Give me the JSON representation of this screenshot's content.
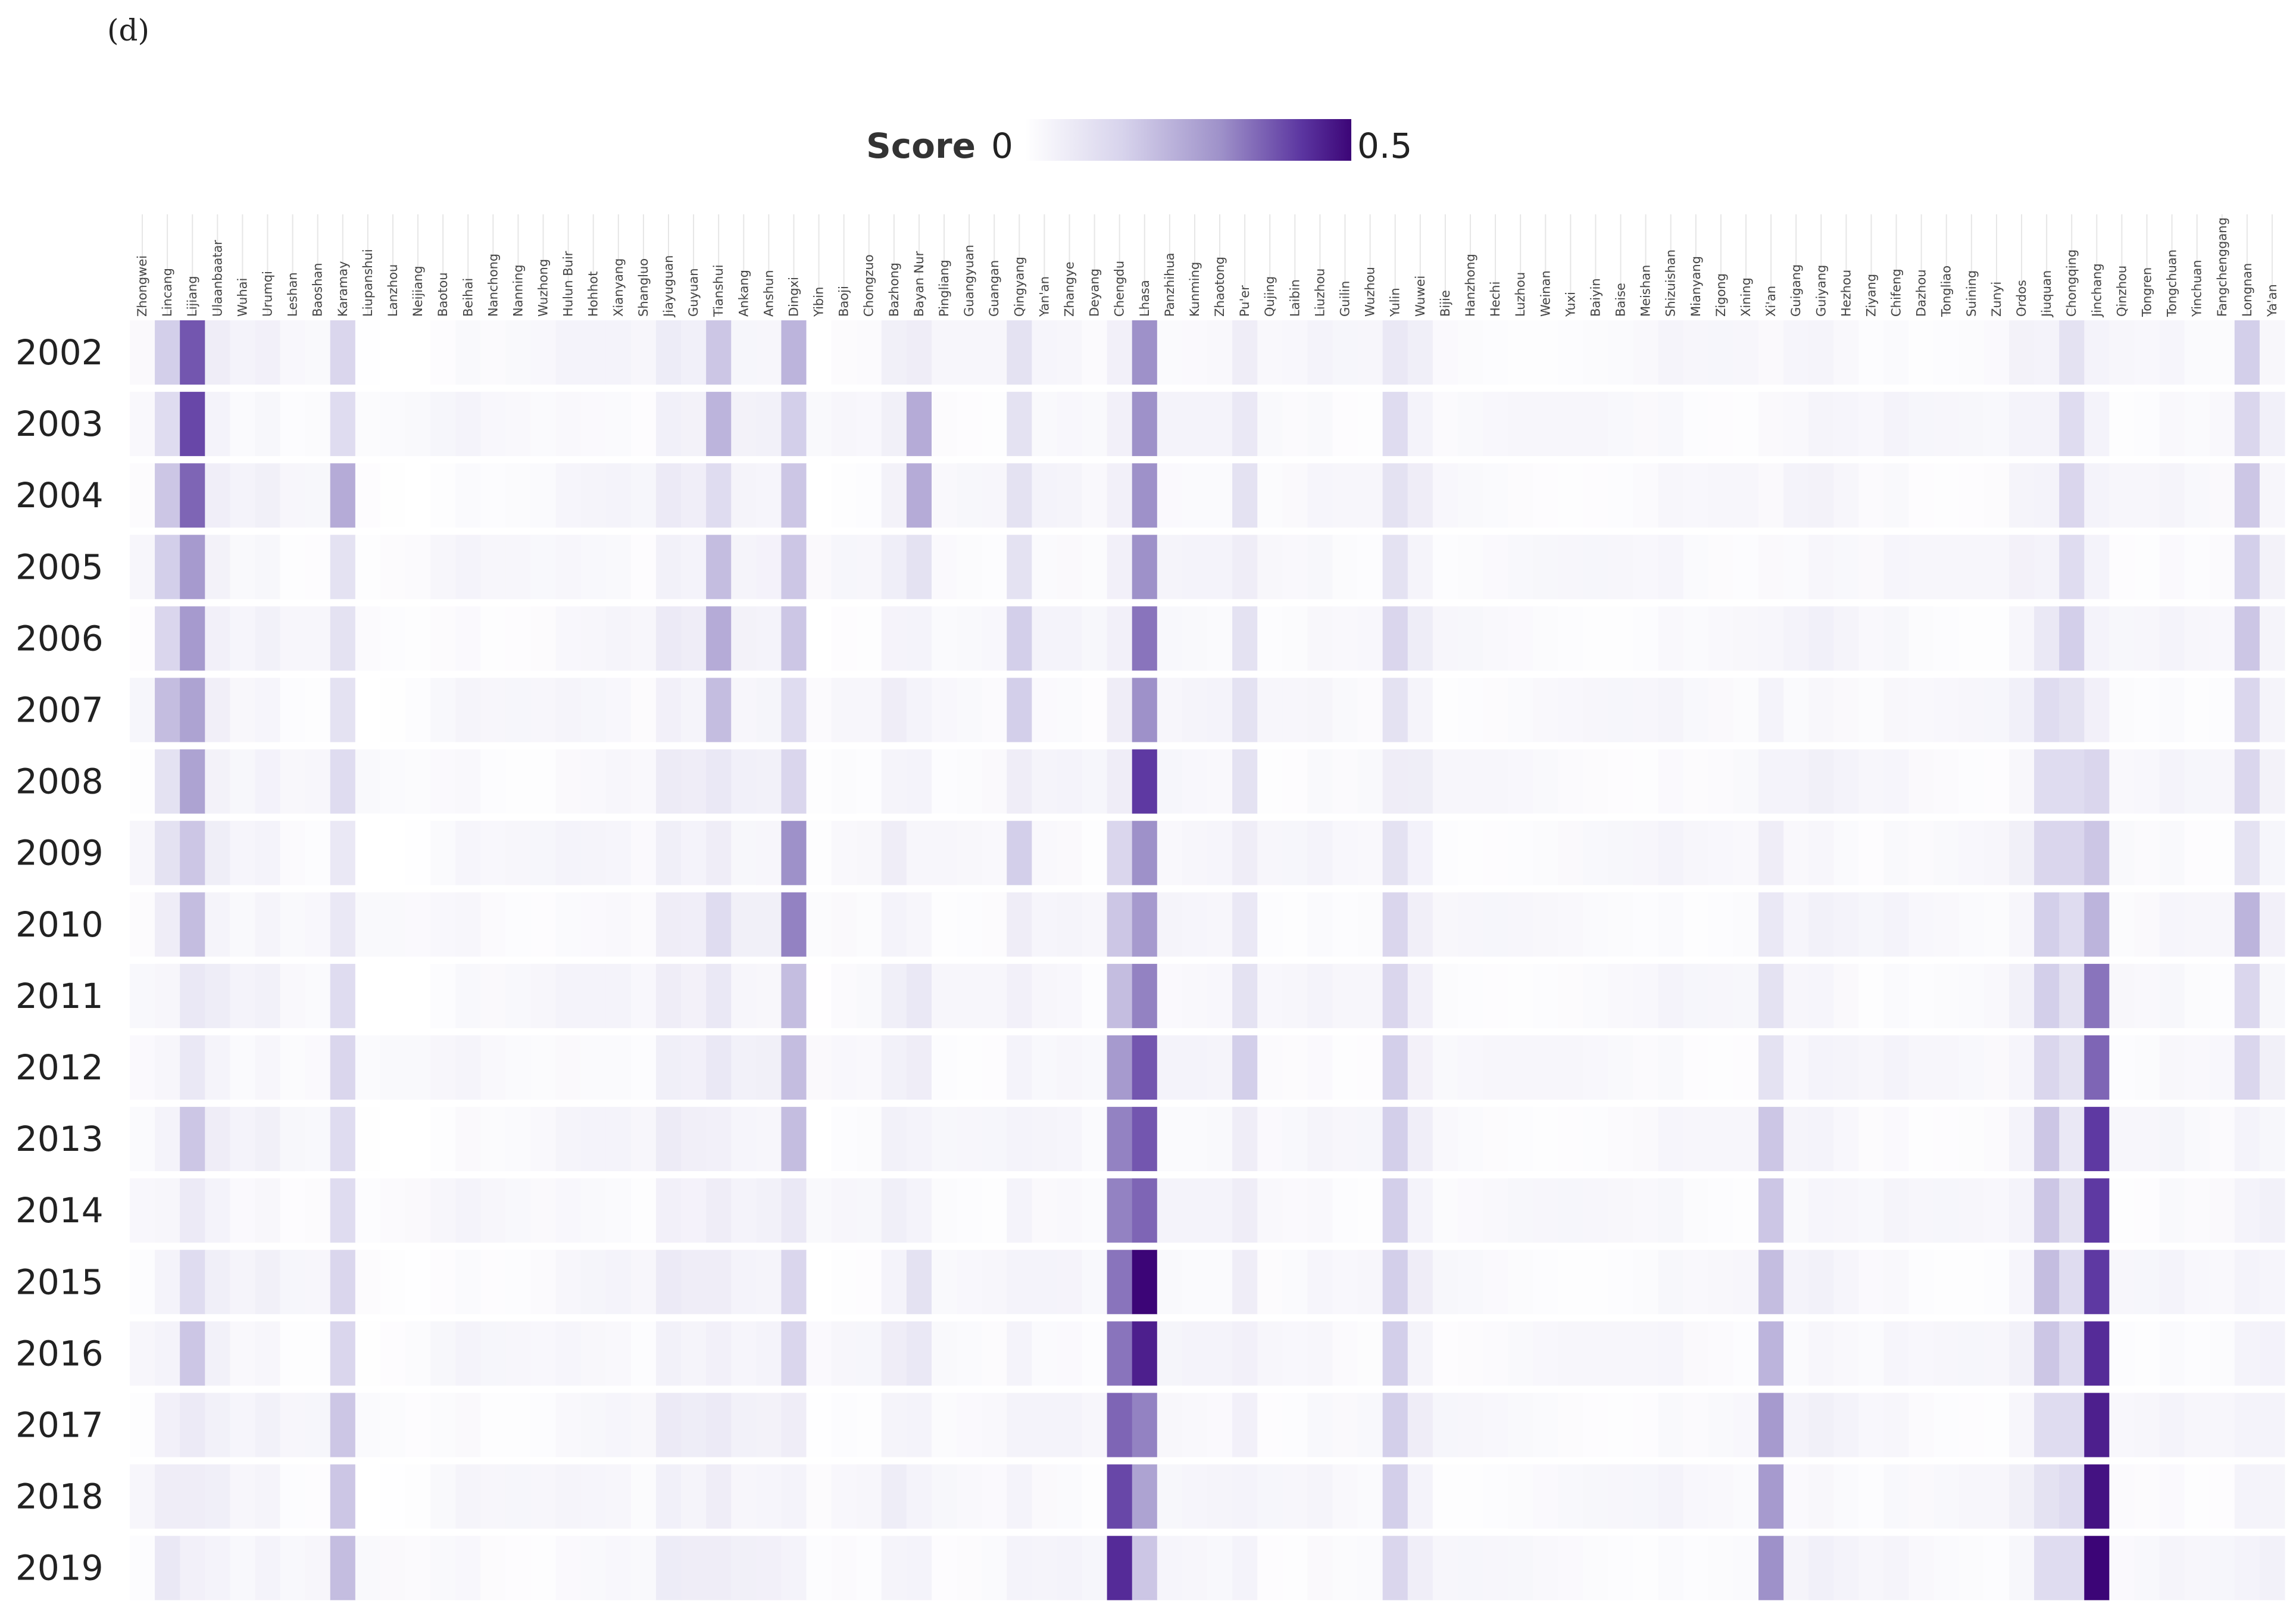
{
  "panel_label": "(d)",
  "chart_data": {
    "type": "heatmap",
    "title": "",
    "legend": {
      "title": "Score",
      "min_label": "0",
      "max_label": "0.5",
      "min": 0,
      "max": 0.5,
      "colors": [
        "#ffffff",
        "#d7d3ec",
        "#9e91c9",
        "#5b35a0",
        "#3c0577"
      ]
    },
    "years": [
      "2002",
      "2003",
      "2004",
      "2005",
      "2006",
      "2007",
      "2008",
      "2009",
      "2010",
      "2011",
      "2012",
      "2013",
      "2014",
      "2015",
      "2016",
      "2017",
      "2018",
      "2019"
    ],
    "cities": [
      "Zhongwei",
      "Lincang",
      "Lijiang",
      "Ulaanbaatar",
      "Wuhai",
      "Urumqi",
      "Leshan",
      "Baoshan",
      "Karamay",
      "Liupanshui",
      "Lanzhou",
      "Neijiang",
      "Baotou",
      "Beihai",
      "Nanchong",
      "Nanning",
      "Wuzhong",
      "Hulun Buir",
      "Hohhot",
      "Xianyang",
      "Shangluo",
      "Jiayuguan",
      "Guyuan",
      "Tianshui",
      "Ankang",
      "Anshun",
      "Dingxi",
      "Yibin",
      "Baoji",
      "Chongzuo",
      "Bazhong",
      "Bayan Nur",
      "Pingliang",
      "Guangyuan",
      "Guangan",
      "Qingyang",
      "Yan'an",
      "Zhangye",
      "Deyang",
      "Chengdu",
      "Lhasa",
      "Panzhihua",
      "Kunming",
      "Zhaotong",
      "Pu'er",
      "Qujing",
      "Laibin",
      "Liuzhou",
      "Guilin",
      "Wuzhou",
      "Yulin",
      "Wuwei",
      "Bijie",
      "Hanzhong",
      "Hechi",
      "Luzhou",
      "Weinan",
      "Yuxi",
      "Baiyin",
      "Baise",
      "Meishan",
      "Shizuishan",
      "Mianyang",
      "Zigong",
      "Xining",
      "Xi'an",
      "Guigang",
      "Guiyang",
      "Hezhou",
      "Ziyang",
      "Chifeng",
      "Dazhou",
      "Tongliao",
      "Suining",
      "Zunyi",
      "Ordos",
      "Jiuquan",
      "Chongqing",
      "Jinchang",
      "Qinzhou",
      "Tongren",
      "Tongchuan",
      "Yinchuan",
      "Fangchenggang",
      "Longnan",
      "Ya'an"
    ],
    "base_values": [
      0.02,
      0.1,
      0.3,
      0.05,
      0.03,
      0.04,
      0.02,
      0.02,
      0.12,
      0.01,
      0.01,
      0.01,
      0.02,
      0.03,
      0.02,
      0.02,
      0.02,
      0.03,
      0.03,
      0.03,
      0.02,
      0.06,
      0.05,
      0.06,
      0.04,
      0.04,
      0.18,
      0.01,
      0.02,
      0.02,
      0.05,
      0.05,
      0.02,
      0.02,
      0.02,
      0.05,
      0.03,
      0.03,
      0.02,
      0.05,
      0.28,
      0.03,
      0.03,
      0.03,
      0.04,
      0.02,
      0.02,
      0.03,
      0.02,
      0.02,
      0.06,
      0.05,
      0.02,
      0.02,
      0.02,
      0.02,
      0.02,
      0.02,
      0.02,
      0.02,
      0.02,
      0.03,
      0.02,
      0.02,
      0.02,
      0.05,
      0.03,
      0.04,
      0.03,
      0.02,
      0.03,
      0.02,
      0.02,
      0.02,
      0.02,
      0.04,
      0.09,
      0.06,
      0.04,
      0.02,
      0.02,
      0.03,
      0.02,
      0.02,
      0.06,
      0.04
    ],
    "highlights": [
      {
        "city": "Lijiang",
        "values": [
          0.38,
          0.4,
          0.36,
          0.28,
          0.28,
          0.26,
          0.26,
          0.18,
          0.2,
          0.08,
          0.08,
          0.18,
          0.07,
          0.12,
          0.18,
          0.07,
          0.06,
          0.05
        ]
      },
      {
        "city": "Lincang",
        "values": [
          0.16,
          0.12,
          0.18,
          0.16,
          0.14,
          0.2,
          0.1,
          0.1,
          0.06,
          0.03,
          0.03,
          0.04,
          0.03,
          0.04,
          0.04,
          0.05,
          0.06,
          0.08
        ]
      },
      {
        "city": "Karamay",
        "values": [
          0.14,
          0.12,
          0.24,
          0.1,
          0.1,
          0.1,
          0.12,
          0.08,
          0.08,
          0.12,
          0.14,
          0.12,
          0.12,
          0.14,
          0.14,
          0.18,
          0.18,
          0.2
        ]
      },
      {
        "city": "Tianshui",
        "values": [
          0.18,
          0.22,
          0.12,
          0.2,
          0.24,
          0.2,
          0.08,
          0.06,
          0.12,
          0.08,
          0.08,
          0.05,
          0.06,
          0.06,
          0.05,
          0.07,
          0.06,
          0.06
        ]
      },
      {
        "city": "Dingxi",
        "values": [
          0.22,
          0.16,
          0.18,
          0.18,
          0.18,
          0.12,
          0.14,
          0.3,
          0.32,
          0.2,
          0.2,
          0.2,
          0.08,
          0.14,
          0.14,
          0.06,
          0.04,
          0.04
        ]
      },
      {
        "city": "Bayan Nur",
        "values": [
          0.06,
          0.24,
          0.24,
          0.1,
          0.04,
          0.04,
          0.04,
          0.03,
          0.03,
          0.08,
          0.06,
          0.04,
          0.04,
          0.1,
          0.08,
          0.04,
          0.04,
          0.04
        ]
      },
      {
        "city": "Qingyang",
        "values": [
          0.1,
          0.1,
          0.1,
          0.1,
          0.16,
          0.16,
          0.06,
          0.16,
          0.06,
          0.05,
          0.04,
          0.04,
          0.04,
          0.04,
          0.04,
          0.04,
          0.04,
          0.04
        ]
      },
      {
        "city": "Chengdu",
        "values": [
          0.05,
          0.05,
          0.05,
          0.05,
          0.05,
          0.06,
          0.06,
          0.14,
          0.18,
          0.2,
          0.28,
          0.32,
          0.32,
          0.34,
          0.34,
          0.36,
          0.4,
          0.44
        ]
      },
      {
        "city": "Lhasa",
        "values": [
          0.3,
          0.3,
          0.3,
          0.3,
          0.34,
          0.3,
          0.42,
          0.3,
          0.28,
          0.32,
          0.38,
          0.38,
          0.36,
          0.5,
          0.46,
          0.32,
          0.26,
          0.18
        ]
      },
      {
        "city": "Pu'er",
        "values": [
          0.06,
          0.08,
          0.1,
          0.06,
          0.1,
          0.1,
          0.1,
          0.06,
          0.08,
          0.1,
          0.16,
          0.06,
          0.06,
          0.06,
          0.05,
          0.05,
          0.04,
          0.04
        ]
      },
      {
        "city": "Yulin",
        "values": [
          0.08,
          0.12,
          0.1,
          0.1,
          0.14,
          0.1,
          0.06,
          0.1,
          0.14,
          0.14,
          0.16,
          0.16,
          0.16,
          0.16,
          0.16,
          0.16,
          0.16,
          0.14
        ]
      },
      {
        "city": "Xi'an",
        "values": [
          0.02,
          0.02,
          0.02,
          0.02,
          0.03,
          0.04,
          0.04,
          0.06,
          0.08,
          0.1,
          0.1,
          0.18,
          0.18,
          0.2,
          0.22,
          0.28,
          0.28,
          0.3
        ]
      },
      {
        "city": "Jiuquan",
        "values": [
          0.04,
          0.04,
          0.04,
          0.04,
          0.08,
          0.12,
          0.12,
          0.14,
          0.16,
          0.16,
          0.14,
          0.18,
          0.18,
          0.2,
          0.18,
          0.12,
          0.1,
          0.12
        ]
      },
      {
        "city": "Chongqing",
        "values": [
          0.1,
          0.12,
          0.14,
          0.12,
          0.16,
          0.1,
          0.12,
          0.14,
          0.12,
          0.1,
          0.1,
          0.08,
          0.1,
          0.12,
          0.12,
          0.12,
          0.12,
          0.12
        ]
      },
      {
        "city": "Jinchang",
        "values": [
          0.04,
          0.04,
          0.04,
          0.04,
          0.04,
          0.05,
          0.14,
          0.18,
          0.22,
          0.34,
          0.36,
          0.42,
          0.42,
          0.42,
          0.44,
          0.46,
          0.48,
          0.5
        ]
      },
      {
        "city": "Longnan",
        "values": [
          0.16,
          0.14,
          0.18,
          0.16,
          0.18,
          0.14,
          0.14,
          0.1,
          0.22,
          0.14,
          0.14,
          0.04,
          0.04,
          0.04,
          0.04,
          0.04,
          0.04,
          0.04
        ]
      }
    ]
  }
}
